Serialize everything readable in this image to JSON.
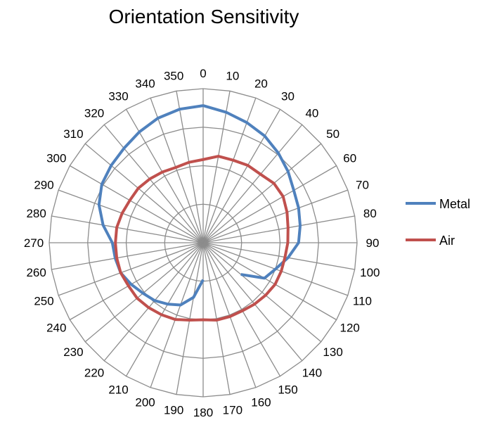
{
  "chart_data": {
    "type": "radar",
    "title": "Orientation Sensitivity",
    "categories": [
      "0",
      "10",
      "20",
      "30",
      "40",
      "50",
      "60",
      "70",
      "80",
      "90",
      "100",
      "110",
      "120",
      "130",
      "140",
      "150",
      "160",
      "170",
      "180",
      "190",
      "200",
      "210",
      "220",
      "230",
      "240",
      "250",
      "260",
      "270",
      "280",
      "290",
      "300",
      "310",
      "320",
      "330",
      "340",
      "350"
    ],
    "rlim": [
      0,
      100
    ],
    "rings": 4,
    "legend_position": "right",
    "series": [
      {
        "name": "Metal",
        "color": "#4f81bd",
        "values": [
          89,
          86,
          83,
          80,
          76,
          72,
          68,
          66,
          64,
          62,
          56,
          50,
          46,
          32,
          null,
          null,
          null,
          null,
          24,
          36,
          43,
          46,
          49,
          51,
          54,
          57,
          58,
          59,
          66,
          72,
          76,
          78,
          80,
          83,
          86,
          88
        ]
      },
      {
        "name": "Air",
        "color": "#c0504d",
        "values": [
          54,
          57,
          57,
          58,
          58,
          60,
          60,
          58,
          56,
          55,
          54,
          54,
          54,
          53,
          52,
          51,
          51,
          51,
          50,
          51,
          53,
          54,
          55,
          56,
          56,
          57,
          57,
          57,
          57,
          56,
          55,
          55,
          54,
          53,
          52,
          53
        ]
      }
    ]
  }
}
